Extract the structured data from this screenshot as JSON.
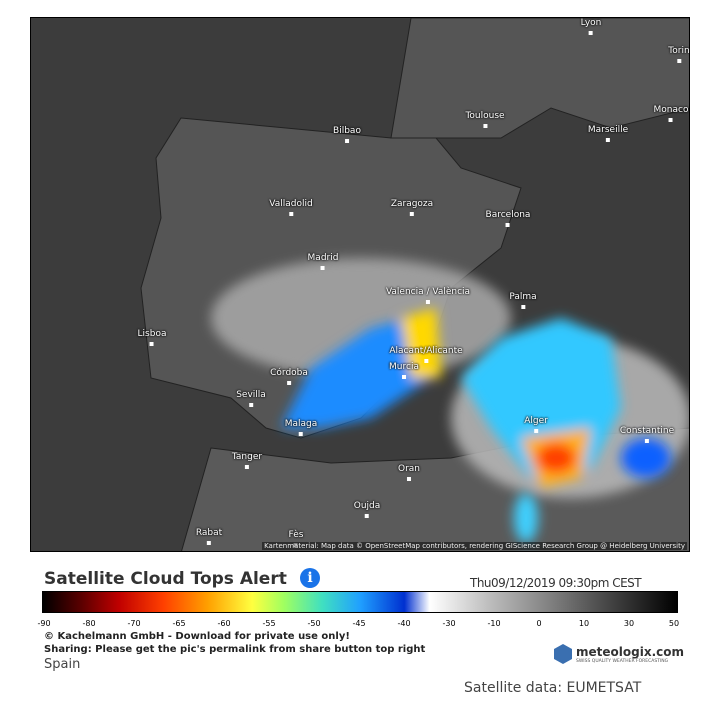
{
  "map": {
    "cities": [
      "Lyon",
      "Torin",
      "Monaco",
      "Toulouse",
      "Marseille",
      "Bilbao",
      "Valladolid",
      "Zaragoza",
      "Barcelona",
      "Madrid",
      "Valencia / València",
      "Palma",
      "Lisboa",
      "Alacant/Alicante",
      "Murcia",
      "Córdoba",
      "Sevilla",
      "Malaga",
      "Alger",
      "Constantine",
      "Tanger",
      "Oran",
      "Oujda",
      "Rabat",
      "Fès"
    ],
    "attribution": "Kartenmaterial: Map data © OpenStreetMap contributors, rendering GIScience Research Group @ Heidelberg University"
  },
  "legend": {
    "title": "Satellite Cloud Tops Alert",
    "timestamp": "Thu09/12/2019 09:30pm CEST",
    "ticks": [
      -90,
      -80,
      -70,
      -65,
      -60,
      -55,
      -50,
      -45,
      -40,
      -30,
      -10,
      0,
      10,
      30,
      50
    ]
  },
  "footer": {
    "copyright": "© Kachelmann GmbH - Download for private use only!",
    "sharing": "Sharing: Please get the pic's permalink from share button top right",
    "region": "Spain",
    "brand": "meteologix.com",
    "slogan": "SWISS QUALITY WEATHER FORECASTING",
    "source": "Satellite data: EUMETSAT"
  }
}
